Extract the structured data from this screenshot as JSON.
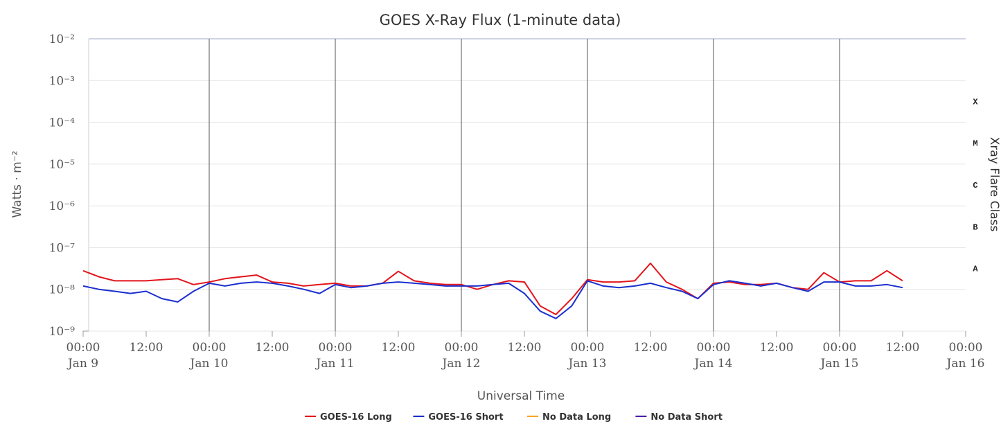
{
  "chart_data": {
    "type": "line",
    "title": "GOES X-Ray Flux (1-minute data)",
    "x_label": "Universal Time",
    "y_label": "Watts · m⁻²",
    "y2_label": "Xray Flare Class",
    "log_y": true,
    "grid": true,
    "xlim": [
      "Jan 9 00:00",
      "Jan 16 00:00"
    ],
    "xticks": [
      {
        "value": "Jan 9 00:00",
        "label": "00:00",
        "sublabel": "Jan 9"
      },
      {
        "value": "Jan 9 12:00",
        "label": "12:00"
      },
      {
        "value": "Jan 10 00:00",
        "label": "00:00",
        "sublabel": "Jan 10"
      },
      {
        "value": "Jan 10 12:00",
        "label": "12:00"
      },
      {
        "value": "Jan 11 00:00",
        "label": "00:00",
        "sublabel": "Jan 11"
      },
      {
        "value": "Jan 11 12:00",
        "label": "12:00"
      },
      {
        "value": "Jan 12 00:00",
        "label": "00:00",
        "sublabel": "Jan 12"
      },
      {
        "value": "Jan 12 12:00",
        "label": "12:00"
      },
      {
        "value": "Jan 13 00:00",
        "label": "00:00",
        "sublabel": "Jan 13"
      },
      {
        "value": "Jan 13 12:00",
        "label": "12:00"
      },
      {
        "value": "Jan 14 00:00",
        "label": "00:00",
        "sublabel": "Jan 14"
      },
      {
        "value": "Jan 14 12:00",
        "label": "12:00"
      },
      {
        "value": "Jan 15 00:00",
        "label": "00:00",
        "sublabel": "Jan 15"
      },
      {
        "value": "Jan 15 12:00",
        "label": "12:00"
      },
      {
        "value": "Jan 16 00:00",
        "label": "00:00",
        "sublabel": "Jan 16"
      }
    ],
    "ylim": [
      1e-09,
      0.01
    ],
    "yticks": [
      {
        "value": 1e-09,
        "label": "10⁻⁹"
      },
      {
        "value": 1e-08,
        "label": "10⁻⁸"
      },
      {
        "value": 1e-07,
        "label": "10⁻⁷"
      },
      {
        "value": 1e-06,
        "label": "10⁻⁶"
      },
      {
        "value": 1e-05,
        "label": "10⁻⁵"
      },
      {
        "value": 0.0001,
        "label": "10⁻⁴"
      },
      {
        "value": 0.001,
        "label": "10⁻³"
      },
      {
        "value": 0.01,
        "label": "10⁻²"
      }
    ],
    "flare_classes": [
      {
        "label": "A",
        "min": 1e-08,
        "max": 1e-07
      },
      {
        "label": "B",
        "min": 1e-07,
        "max": 1e-06
      },
      {
        "label": "C",
        "min": 1e-06,
        "max": 1e-05
      },
      {
        "label": "M",
        "min": 1e-05,
        "max": 0.0001
      },
      {
        "label": "X",
        "min": 0.0001,
        "max": 0.001
      }
    ],
    "x": [
      "Jan 9 00:00",
      "Jan 9 03:00",
      "Jan 9 06:00",
      "Jan 9 09:00",
      "Jan 9 12:00",
      "Jan 9 15:00",
      "Jan 9 18:00",
      "Jan 9 21:00",
      "Jan 10 00:00",
      "Jan 10 03:00",
      "Jan 10 06:00",
      "Jan 10 09:00",
      "Jan 10 12:00",
      "Jan 10 15:00",
      "Jan 10 18:00",
      "Jan 10 21:00",
      "Jan 11 00:00",
      "Jan 11 03:00",
      "Jan 11 06:00",
      "Jan 11 09:00",
      "Jan 11 12:00",
      "Jan 11 15:00",
      "Jan 11 18:00",
      "Jan 11 21:00",
      "Jan 12 00:00",
      "Jan 12 03:00",
      "Jan 12 06:00",
      "Jan 12 09:00",
      "Jan 12 12:00",
      "Jan 12 15:00",
      "Jan 12 18:00",
      "Jan 12 21:00",
      "Jan 13 00:00",
      "Jan 13 03:00",
      "Jan 13 06:00",
      "Jan 13 09:00",
      "Jan 13 12:00",
      "Jan 13 15:00",
      "Jan 13 18:00",
      "Jan 13 21:00",
      "Jan 14 00:00",
      "Jan 14 03:00",
      "Jan 14 06:00",
      "Jan 14 09:00",
      "Jan 14 12:00",
      "Jan 14 15:00",
      "Jan 14 18:00",
      "Jan 14 21:00",
      "Jan 15 00:00",
      "Jan 15 03:00",
      "Jan 15 06:00",
      "Jan 15 09:00",
      "Jan 15 12:00"
    ],
    "series": [
      {
        "name": "GOES-16 Long",
        "color": "#e3141b",
        "values": [
          2.8e-08,
          2e-08,
          1.6e-08,
          1.6e-08,
          1.6e-08,
          1.7e-08,
          1.8e-08,
          1.3e-08,
          1.5e-08,
          1.8e-08,
          2e-08,
          2.2e-08,
          1.5e-08,
          1.4e-08,
          1.2e-08,
          1.3e-08,
          1.4e-08,
          1.2e-08,
          1.2e-08,
          1.4e-08,
          2.7e-08,
          1.6e-08,
          1.4e-08,
          1.3e-08,
          1.3e-08,
          1e-08,
          1.3e-08,
          1.6e-08,
          1.5e-08,
          4e-09,
          2.5e-09,
          6e-09,
          1.7e-08,
          1.5e-08,
          1.5e-08,
          1.6e-08,
          4.2e-08,
          1.5e-08,
          1e-08,
          6e-09,
          1.4e-08,
          1.5e-08,
          1.3e-08,
          1.3e-08,
          1.4e-08,
          1.1e-08,
          1e-08,
          2.5e-08,
          1.5e-08,
          1.6e-08,
          1.6e-08,
          2.8e-08,
          1.6e-08
        ]
      },
      {
        "name": "GOES-16 Short",
        "color": "#1a2fd0",
        "values": [
          1.2e-08,
          1e-08,
          9e-09,
          8e-09,
          9e-09,
          6e-09,
          5e-09,
          9e-09,
          1.4e-08,
          1.2e-08,
          1.4e-08,
          1.5e-08,
          1.4e-08,
          1.2e-08,
          1e-08,
          8e-09,
          1.3e-08,
          1.1e-08,
          1.2e-08,
          1.4e-08,
          1.5e-08,
          1.4e-08,
          1.3e-08,
          1.2e-08,
          1.2e-08,
          1.2e-08,
          1.3e-08,
          1.4e-08,
          8e-09,
          3e-09,
          2e-09,
          4e-09,
          1.6e-08,
          1.2e-08,
          1.1e-08,
          1.2e-08,
          1.4e-08,
          1.1e-08,
          9e-09,
          6e-09,
          1.3e-08,
          1.6e-08,
          1.4e-08,
          1.2e-08,
          1.4e-08,
          1.1e-08,
          9e-09,
          1.5e-08,
          1.5e-08,
          1.2e-08,
          1.2e-08,
          1.3e-08,
          1.1e-08
        ]
      },
      {
        "name": "No Data Long",
        "color": "#f5a623",
        "values": [
          null,
          null,
          null,
          null,
          null,
          null,
          null,
          null,
          null,
          null,
          null,
          null,
          null,
          null,
          null,
          null,
          null,
          null,
          null,
          null,
          null,
          null,
          null,
          null,
          null,
          null,
          null,
          null,
          null,
          null,
          null,
          null,
          null,
          null,
          null,
          null,
          null,
          null,
          null,
          null,
          null,
          null,
          null,
          null,
          null,
          null,
          null,
          null,
          null,
          null,
          null,
          null,
          null
        ]
      },
      {
        "name": "No Data Short",
        "color": "#4a1ca8",
        "values": [
          null,
          null,
          null,
          null,
          null,
          null,
          null,
          null,
          null,
          null,
          null,
          null,
          null,
          null,
          null,
          null,
          null,
          null,
          null,
          null,
          null,
          null,
          null,
          null,
          null,
          null,
          null,
          null,
          null,
          null,
          null,
          null,
          null,
          null,
          null,
          null,
          null,
          null,
          null,
          null,
          null,
          null,
          null,
          null,
          null,
          null,
          null,
          null,
          null,
          null,
          null,
          null,
          null
        ]
      }
    ]
  }
}
